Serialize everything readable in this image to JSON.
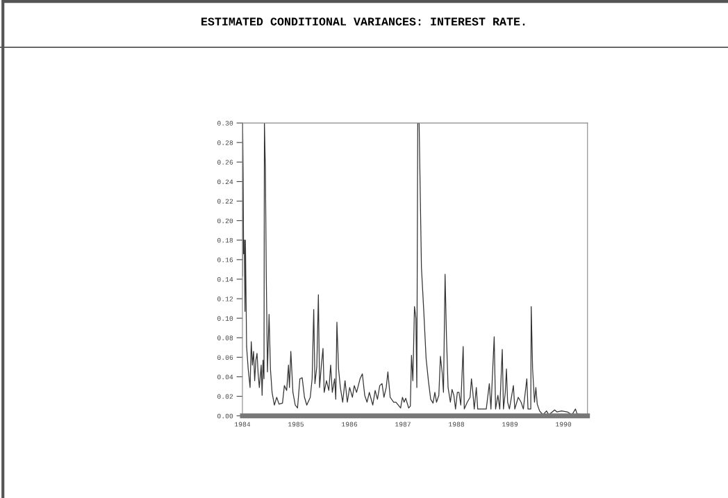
{
  "chart_data": {
    "type": "line",
    "title": "ESTIMATED CONDITIONAL VARIANCES: INTEREST RATE.",
    "xlim": [
      1984,
      1990.45
    ],
    "xticks": [
      1984,
      1985,
      1986,
      1987,
      1988,
      1989,
      1990
    ],
    "ylim": [
      0,
      0.3
    ],
    "yticks": [
      {
        "value": 0,
        "label": "0.00"
      },
      {
        "value": 0.02,
        "label": "0.02"
      },
      {
        "value": 0.04,
        "label": "0.04"
      },
      {
        "value": 0.06,
        "label": "0.06"
      },
      {
        "value": 0.08,
        "label": "0.08"
      },
      {
        "value": 0.1,
        "label": "0.10"
      },
      {
        "value": 0.12,
        "label": "0.12"
      },
      {
        "value": 0.14,
        "label": "0.14"
      },
      {
        "value": 0.16,
        "label": "0.16"
      },
      {
        "value": 0.18,
        "label": "0.18"
      },
      {
        "value": 0.2,
        "label": "0.20"
      },
      {
        "value": 0.22,
        "label": "0.22"
      },
      {
        "value": 0.24,
        "label": "0.24"
      },
      {
        "value": 0.26,
        "label": "0.26"
      },
      {
        "value": 0.28,
        "label": "0.28"
      },
      {
        "value": 0.3,
        "label": "0.30"
      }
    ],
    "grid": false,
    "legend": false,
    "marker": "none",
    "line_style": "solid",
    "series": [
      {
        "color": "#333333",
        "x": [
          1984.0,
          1984.004,
          1984.013,
          1984.022,
          1984.035,
          1984.048,
          1984.056,
          1984.078,
          1984.108,
          1984.143,
          1984.165,
          1984.186,
          1984.208,
          1984.229,
          1984.251,
          1984.273,
          1984.294,
          1984.316,
          1984.351,
          1984.368,
          1984.385,
          1984.403,
          1984.411,
          1984.429,
          1984.446,
          1984.468,
          1984.498,
          1984.524,
          1984.554,
          1984.597,
          1984.641,
          1984.684,
          1984.749,
          1984.784,
          1984.827,
          1984.861,
          1984.879,
          1984.905,
          1984.944,
          1984.987,
          1985.03,
          1985.074,
          1985.117,
          1985.16,
          1985.203,
          1985.268,
          1985.303,
          1985.333,
          1985.355,
          1985.39,
          1985.42,
          1985.442,
          1985.476,
          1985.506,
          1985.528,
          1985.571,
          1985.615,
          1985.649,
          1985.68,
          1985.723,
          1985.745,
          1985.766,
          1985.797,
          1985.831,
          1985.874,
          1985.918,
          1985.961,
          1986.004,
          1986.056,
          1986.091,
          1986.134,
          1986.199,
          1986.242,
          1986.286,
          1986.329,
          1986.372,
          1986.437,
          1986.481,
          1986.524,
          1986.567,
          1986.61,
          1986.645,
          1986.688,
          1986.719,
          1986.762,
          1986.827,
          1986.87,
          1986.957,
          1986.991,
          1987.022,
          1987.052,
          1987.108,
          1987.139,
          1987.16,
          1987.186,
          1987.216,
          1987.242,
          1987.26,
          1987.277,
          1987.303,
          1987.346,
          1987.39,
          1987.433,
          1987.476,
          1987.519,
          1987.563,
          1987.597,
          1987.628,
          1987.671,
          1987.701,
          1987.736,
          1987.758,
          1987.788,
          1987.814,
          1987.844,
          1987.887,
          1987.918,
          1987.952,
          1987.983,
          1988.017,
          1988.048,
          1988.082,
          1988.126,
          1988.147,
          1988.203,
          1988.255,
          1988.281,
          1988.307,
          1988.333,
          1988.372,
          1988.398,
          1988.472,
          1988.558,
          1988.615,
          1988.645,
          1988.706,
          1988.732,
          1988.775,
          1988.81,
          1988.857,
          1988.879,
          1988.913,
          1988.935,
          1988.957,
          1988.991,
          1989.065,
          1989.091,
          1989.156,
          1989.208,
          1989.251,
          1989.316,
          1989.338,
          1989.39,
          1989.398,
          1989.424,
          1989.459,
          1989.485,
          1989.511,
          1989.554,
          1989.619,
          1989.684,
          1989.727,
          1989.835,
          1989.879,
          1989.965,
          1990.074,
          1990.16,
          1990.225,
          1990.255,
          1990.377,
          1990.442
        ],
        "values": [
          0.143,
          0.3,
          0.25,
          0.166,
          0.18,
          0.107,
          0.18,
          0.071,
          0.048,
          0.029,
          0.076,
          0.052,
          0.066,
          0.036,
          0.057,
          0.064,
          0.043,
          0.029,
          0.052,
          0.021,
          0.057,
          0.038,
          0.3,
          0.254,
          0.143,
          0.045,
          0.104,
          0.048,
          0.024,
          0.011,
          0.019,
          0.012,
          0.013,
          0.031,
          0.026,
          0.052,
          0.029,
          0.066,
          0.024,
          0.011,
          0.008,
          0.038,
          0.039,
          0.019,
          0.011,
          0.019,
          0.038,
          0.109,
          0.033,
          0.05,
          0.124,
          0.029,
          0.052,
          0.069,
          0.024,
          0.036,
          0.026,
          0.052,
          0.024,
          0.038,
          0.017,
          0.096,
          0.048,
          0.029,
          0.014,
          0.036,
          0.014,
          0.029,
          0.019,
          0.031,
          0.024,
          0.038,
          0.043,
          0.021,
          0.014,
          0.024,
          0.011,
          0.026,
          0.017,
          0.031,
          0.033,
          0.019,
          0.029,
          0.045,
          0.019,
          0.014,
          0.014,
          0.008,
          0.019,
          0.014,
          0.018,
          0.008,
          0.01,
          0.062,
          0.036,
          0.112,
          0.1,
          0.029,
          0.3,
          0.3,
          0.152,
          0.107,
          0.059,
          0.036,
          0.017,
          0.013,
          0.024,
          0.014,
          0.021,
          0.061,
          0.043,
          0.024,
          0.145,
          0.081,
          0.029,
          0.014,
          0.027,
          0.021,
          0.007,
          0.024,
          0.024,
          0.011,
          0.071,
          0.007,
          0.014,
          0.019,
          0.038,
          0.024,
          0.007,
          0.029,
          0.007,
          0.007,
          0.007,
          0.033,
          0.007,
          0.081,
          0.007,
          0.021,
          0.007,
          0.068,
          0.007,
          0.024,
          0.048,
          0.014,
          0.007,
          0.031,
          0.007,
          0.019,
          0.014,
          0.007,
          0.038,
          0.007,
          0.007,
          0.112,
          0.048,
          0.014,
          0.029,
          0.012,
          0.005,
          0.001,
          0.005,
          0.001,
          0.006,
          0.004,
          0.005,
          0.004,
          0.001,
          0.007,
          0.002,
          0.001,
          0.001
        ]
      }
    ]
  }
}
